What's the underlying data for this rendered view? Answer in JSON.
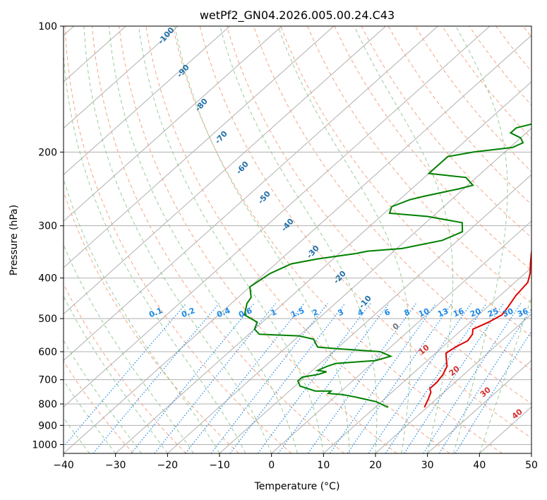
{
  "chart_data": {
    "type": "line",
    "title": "wetPf2_GN04.2026.005.00.24.C43",
    "xlabel": "Temperature (°C)",
    "ylabel": "Pressure (hPa)",
    "xlim": [
      -40,
      50
    ],
    "ylim": [
      1050,
      100
    ],
    "y_scale": "log",
    "grid": true,
    "x_ticks": [
      -40,
      -30,
      -20,
      -10,
      0,
      10,
      20,
      30,
      40,
      50
    ],
    "y_ticks": [
      100,
      200,
      300,
      400,
      500,
      600,
      700,
      800,
      900,
      1000
    ],
    "series": [
      {
        "color": "#e00000",
        "points": [
          [
            19.5,
            815
          ],
          [
            18.5,
            780
          ],
          [
            17.5,
            750
          ],
          [
            16.5,
            735
          ],
          [
            16.5,
            710
          ],
          [
            16,
            680
          ],
          [
            15,
            650
          ],
          [
            13,
            620
          ],
          [
            12,
            605
          ],
          [
            12.5,
            585
          ],
          [
            13.5,
            565
          ],
          [
            13,
            545
          ],
          [
            12,
            530
          ],
          [
            13.5,
            510
          ],
          [
            14.5,
            490
          ],
          [
            14,
            470
          ],
          [
            13,
            440
          ],
          [
            12.5,
            410
          ],
          [
            11,
            390
          ],
          [
            9,
            370
          ],
          [
            7,
            350
          ],
          [
            5,
            330
          ],
          [
            4,
            310
          ],
          [
            3,
            290
          ],
          [
            3.5,
            270
          ],
          [
            3,
            250
          ],
          [
            2.5,
            230
          ],
          [
            3,
            210
          ],
          [
            3.5,
            190
          ],
          [
            5,
            170
          ],
          [
            6.5,
            155
          ],
          [
            6.5,
            140
          ],
          [
            7,
            130
          ],
          [
            9,
            120
          ],
          [
            10.5,
            110
          ],
          [
            11.5,
            105
          ],
          [
            12.5,
            100
          ]
        ]
      },
      {
        "color": "#008000",
        "points": [
          [
            12.5,
            815
          ],
          [
            9,
            790
          ],
          [
            4,
            770
          ],
          [
            1,
            760
          ],
          [
            -2,
            755
          ],
          [
            -2,
            745
          ],
          [
            -5,
            745
          ],
          [
            -9,
            725
          ],
          [
            -10.5,
            705
          ],
          [
            -10.5,
            690
          ],
          [
            -8,
            680
          ],
          [
            -7,
            670
          ],
          [
            -9,
            665
          ],
          [
            -8,
            650
          ],
          [
            -7,
            640
          ],
          [
            0,
            630
          ],
          [
            2,
            615
          ],
          [
            -1,
            600
          ],
          [
            -10,
            590
          ],
          [
            -14,
            585
          ],
          [
            -15,
            575
          ],
          [
            -16.5,
            560
          ],
          [
            -20,
            550
          ],
          [
            -28,
            545
          ],
          [
            -30,
            530
          ],
          [
            -31,
            510
          ],
          [
            -35,
            490
          ],
          [
            -37,
            460
          ],
          [
            -37.5,
            445
          ],
          [
            -40,
            420
          ],
          [
            -39,
            390
          ],
          [
            -37,
            370
          ],
          [
            -33,
            360
          ],
          [
            -27,
            350
          ],
          [
            -25,
            345
          ],
          [
            -19,
            340
          ],
          [
            -13,
            325
          ],
          [
            -11,
            310
          ],
          [
            -13,
            295
          ],
          [
            -21,
            285
          ],
          [
            -29,
            280
          ],
          [
            -30,
            270
          ],
          [
            -28,
            260
          ],
          [
            -26,
            255
          ],
          [
            -21,
            245
          ],
          [
            -19,
            240
          ],
          [
            -22,
            230
          ],
          [
            -30,
            225
          ],
          [
            -30,
            210
          ],
          [
            -30,
            205
          ],
          [
            -26,
            200
          ],
          [
            -19.5,
            195
          ],
          [
            -18.5,
            190
          ],
          [
            -20,
            185
          ],
          [
            -23,
            180
          ],
          [
            -23,
            175
          ],
          [
            -20,
            170
          ],
          [
            -16,
            165
          ],
          [
            -13,
            160
          ],
          [
            -13,
            150
          ],
          [
            -11,
            140
          ],
          [
            -10,
            130
          ],
          [
            -7,
            120
          ],
          [
            -4,
            110
          ],
          [
            -1,
            103
          ],
          [
            0.5,
            100
          ]
        ]
      }
    ],
    "dry_adiabat_labels": [
      "-100",
      "-90",
      "-80",
      "-70",
      "-60",
      "-50",
      "-40",
      "-30",
      "-20",
      "-10"
    ],
    "moist_adiabat_labels": [
      "0",
      "10",
      "20",
      "30",
      "40"
    ],
    "mixing_ratio_labels": [
      "0.1",
      "0.2",
      "0.4",
      "0.6",
      "1",
      "1.5",
      "2",
      "3",
      "4",
      "6",
      "8",
      "10",
      "13",
      "16",
      "20",
      "25",
      "30",
      "36"
    ]
  },
  "colors": {
    "temperature": "#e00000",
    "dewpoint": "#008000",
    "dry_adiabat": "#f4a582",
    "moist_adiabat": "#7fbf7f",
    "mixing_ratio": "#1e88e5",
    "isotherm": "#999999"
  }
}
